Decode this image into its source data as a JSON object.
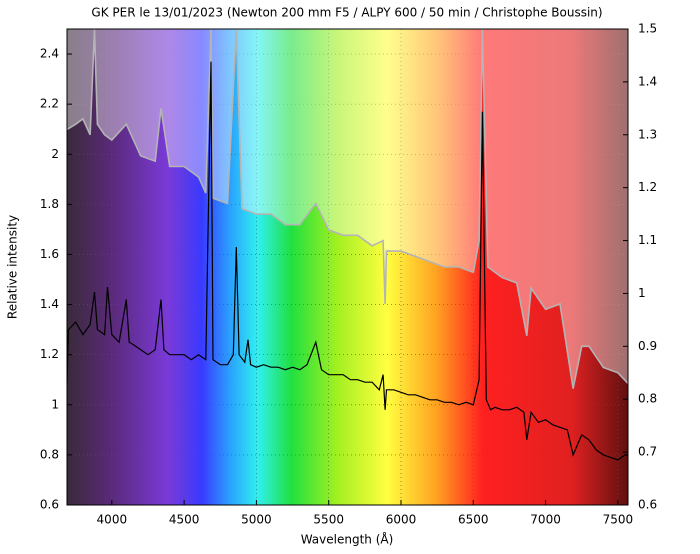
{
  "chart_data": {
    "type": "line",
    "title": "GK PER le 13/01/2023 (Newton 200 mm F5 / ALPY 600 / 50 min / Christophe Boussin)",
    "xlabel": "Wavelength (Å)",
    "ylabel": "Relative intensity",
    "xlim": [
      3690,
      7570
    ],
    "xticks": [
      4000,
      4500,
      5000,
      5500,
      6000,
      6500,
      7000,
      7500
    ],
    "ylim": [
      0.6,
      2.5
    ],
    "yticks": [
      0.6,
      0.8,
      1,
      1.2,
      1.4,
      1.6,
      1.8,
      2,
      2.2,
      2.4
    ],
    "y2lim": [
      0.6,
      1.5
    ],
    "y2ticks": [
      0.6,
      0.7,
      0.8,
      0.9,
      1,
      1.1,
      1.2,
      1.3,
      1.4,
      1.5
    ],
    "grid": true,
    "series": [
      {
        "color": "#b4b4b4",
        "axis": "y2",
        "x": [
          3690,
          3750,
          3800,
          3850,
          3880,
          3900,
          3950,
          4000,
          4100,
          4200,
          4300,
          4340,
          4400,
          4500,
          4600,
          4650,
          4686,
          4700,
          4800,
          4861,
          4900,
          5000,
          5100,
          5200,
          5300,
          5411,
          5500,
          5600,
          5700,
          5800,
          5876,
          5890,
          5900,
          6000,
          6100,
          6200,
          6300,
          6400,
          6500,
          6540,
          6563,
          6600,
          6700,
          6800,
          6870,
          6900,
          7000,
          7100,
          7190,
          7250,
          7300,
          7400,
          7500,
          7570
        ],
        "values": [
          1.31,
          1.32,
          1.33,
          1.3,
          1.5,
          1.32,
          1.3,
          1.29,
          1.32,
          1.26,
          1.25,
          1.35,
          1.24,
          1.24,
          1.22,
          1.19,
          1.5,
          1.18,
          1.17,
          1.5,
          1.16,
          1.15,
          1.15,
          1.13,
          1.13,
          1.17,
          1.12,
          1.11,
          1.11,
          1.09,
          1.1,
          0.98,
          1.08,
          1.08,
          1.07,
          1.06,
          1.05,
          1.05,
          1.04,
          1.1,
          1.5,
          1.05,
          1.03,
          1.02,
          0.92,
          1.01,
          0.97,
          0.98,
          0.82,
          0.9,
          0.9,
          0.86,
          0.85,
          0.83
        ]
      },
      {
        "color": "#000000",
        "axis": "y",
        "x": [
          3690,
          3700,
          3750,
          3800,
          3850,
          3880,
          3900,
          3950,
          3970,
          4000,
          4050,
          4100,
          4120,
          4150,
          4200,
          4250,
          4300,
          4340,
          4360,
          4400,
          4450,
          4500,
          4550,
          4600,
          4650,
          4686,
          4700,
          4750,
          4800,
          4840,
          4861,
          4880,
          4920,
          4942,
          4960,
          5000,
          5050,
          5100,
          5150,
          5200,
          5250,
          5300,
          5350,
          5411,
          5450,
          5500,
          5550,
          5600,
          5650,
          5700,
          5750,
          5800,
          5850,
          5876,
          5890,
          5900,
          5950,
          6000,
          6050,
          6100,
          6150,
          6200,
          6250,
          6300,
          6350,
          6400,
          6450,
          6500,
          6540,
          6563,
          6590,
          6620,
          6650,
          6700,
          6750,
          6800,
          6850,
          6870,
          6900,
          6950,
          7000,
          7050,
          7100,
          7150,
          7190,
          7250,
          7300,
          7350,
          7400,
          7450,
          7500,
          7550,
          7570
        ],
        "values": [
          1.08,
          1.3,
          1.33,
          1.28,
          1.32,
          1.45,
          1.3,
          1.28,
          1.47,
          1.28,
          1.25,
          1.42,
          1.25,
          1.24,
          1.22,
          1.2,
          1.22,
          1.42,
          1.22,
          1.2,
          1.2,
          1.2,
          1.18,
          1.2,
          1.18,
          2.37,
          1.18,
          1.16,
          1.16,
          1.2,
          1.63,
          1.2,
          1.17,
          1.26,
          1.16,
          1.15,
          1.16,
          1.15,
          1.15,
          1.14,
          1.15,
          1.14,
          1.16,
          1.25,
          1.14,
          1.12,
          1.12,
          1.12,
          1.1,
          1.1,
          1.09,
          1.09,
          1.06,
          1.12,
          0.98,
          1.06,
          1.06,
          1.05,
          1.04,
          1.04,
          1.03,
          1.02,
          1.02,
          1.01,
          1.01,
          1.0,
          1.01,
          1.0,
          1.1,
          2.17,
          1.02,
          0.98,
          0.99,
          0.98,
          0.98,
          0.99,
          0.97,
          0.86,
          0.97,
          0.93,
          0.94,
          0.92,
          0.91,
          0.9,
          0.8,
          0.88,
          0.86,
          0.82,
          0.8,
          0.79,
          0.78,
          0.8,
          0.8
        ]
      }
    ]
  }
}
